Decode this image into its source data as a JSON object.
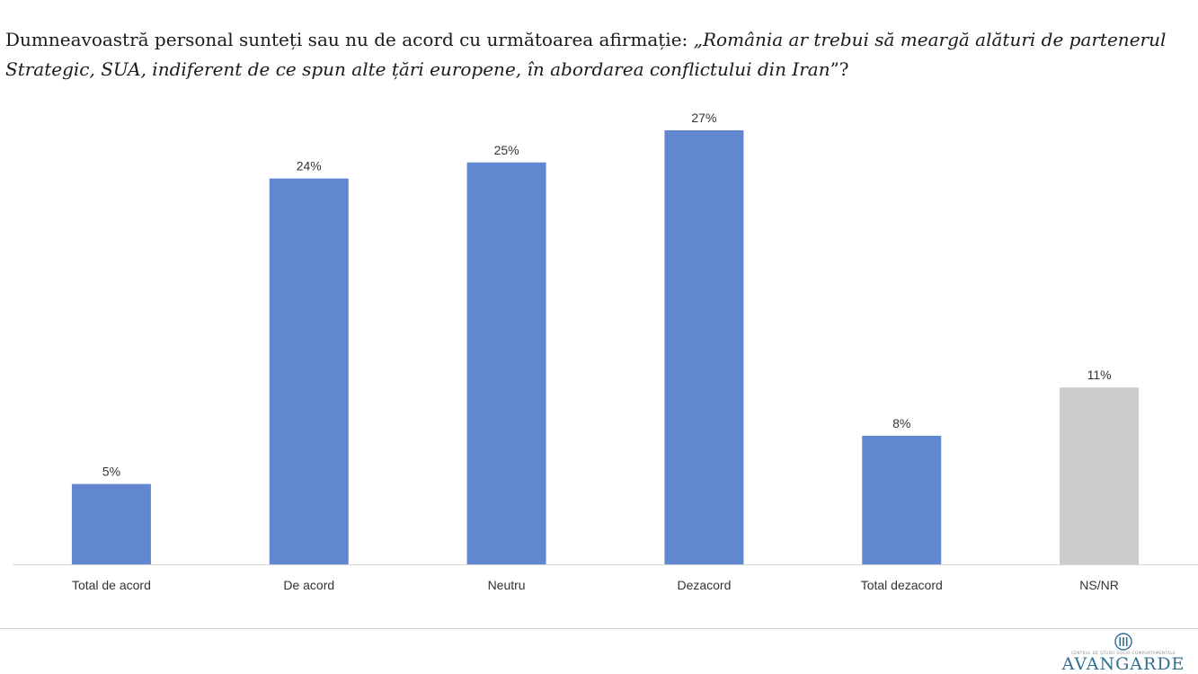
{
  "title": {
    "prefix": "Dumneavoastră personal sunteți sau nu de acord cu următoarea afirmație: ",
    "quote": "„România ar trebui să meargă alături de partenerul Strategic, SUA, indiferent de ce spun alte țări europene, în abordarea conflictului din Iran",
    "suffix": "”?"
  },
  "chart_data": {
    "type": "bar",
    "categories": [
      "Total de acord",
      "De acord",
      "Neutru",
      "Dezacord",
      "Total dezacord",
      "NS/NR"
    ],
    "values": [
      5,
      24,
      25,
      27,
      8,
      11
    ],
    "value_labels": [
      "5%",
      "24%",
      "25%",
      "27%",
      "8%",
      "11%"
    ],
    "unit": "%",
    "colors": [
      "#6087d0",
      "#6087d0",
      "#6087d0",
      "#6087d0",
      "#6087d0",
      "#cccccc"
    ],
    "ylim": [
      0,
      27
    ],
    "grid": false,
    "legend": "none"
  },
  "footer": {
    "logo_small_text": "CENTRUL DE STUDII SOCIO-COMPORTAMENTALE",
    "logo_text": "AVANGARDE",
    "logo_icon": "avangarde-logo-icon"
  }
}
